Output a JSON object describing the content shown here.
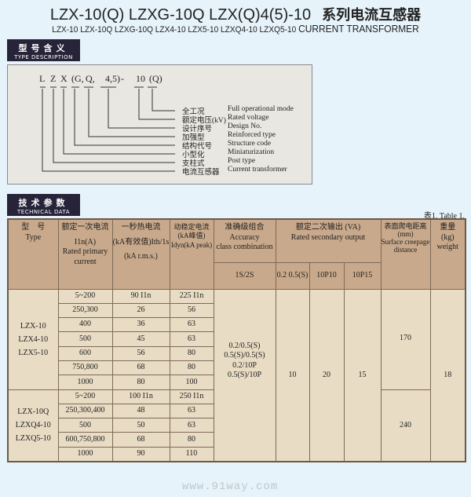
{
  "header": {
    "title": "LZX-10(Q) LZXG-10Q  LZX(Q)4(5)-10",
    "title_cn": "系列电流互感器",
    "subtitle_models": "LZX-10 LZX-10Q LZXG-10Q LZX4-10 LZX5-10 LZXQ4-10 LZXQ5-10",
    "subtitle_en": "CURRENT TRANSFORMER"
  },
  "type_section": {
    "cn": "型号含义",
    "en": "TYPE DESCRIPTION"
  },
  "diagram": {
    "code_parts": [
      "L",
      "Z",
      "X",
      "(G,",
      "Q,",
      "4,5)",
      "-",
      "10",
      "(Q)"
    ],
    "labels": [
      {
        "cn": "全工况",
        "en": "Full operational mode"
      },
      {
        "cn": "额定电压(kV)",
        "en": "Rated voltage"
      },
      {
        "cn": "设计序号",
        "en": "Design No."
      },
      {
        "cn": "加强型",
        "en": "Reinforced type"
      },
      {
        "cn": "结构代号",
        "en": "Structure code"
      },
      {
        "cn": "小型化",
        "en": "Miniaturization"
      },
      {
        "cn": "支柱式",
        "en": "Post type"
      },
      {
        "cn": "电流互感器",
        "en": "Current transformer"
      }
    ]
  },
  "tech_section": {
    "cn": "技术参数",
    "en": "TECHNICAL DATA"
  },
  "table": {
    "note": "表1, Table 1,",
    "headers": {
      "type": [
        "型　号",
        "Type"
      ],
      "primary": [
        "额定一次电流",
        "I1n(A)",
        "Rated primary current"
      ],
      "thermal": [
        "一秒热电流",
        "(kA有效值)Ith/1s",
        "(kA r.m.s.)"
      ],
      "dynamic": [
        "动稳定电流",
        "(kA峰值)",
        "Idyn(kA peak)"
      ],
      "accuracy": [
        "准确级组合",
        "Accuracy",
        "class combination"
      ],
      "output": [
        "额定二次输出 (VA)",
        "Rated secondary output"
      ],
      "creepage": [
        "表面爬电距离",
        "(mm)",
        "Surface creepage distance"
      ],
      "weight": [
        "重量",
        "(kg)",
        "weight"
      ],
      "sub": [
        "1S/2S",
        "0.2 0.5(S)",
        "10P10",
        "10P15"
      ]
    },
    "groups": [
      {
        "type": [
          "LZX-10",
          "LZX4-10",
          "LZX5-10"
        ],
        "creepage": "170",
        "rows": [
          [
            "5~200",
            "90 I1n",
            "225 I1n"
          ],
          [
            "250,300",
            "26",
            "56"
          ],
          [
            "400",
            "36",
            "63"
          ],
          [
            "500",
            "45",
            "63"
          ],
          [
            "600",
            "56",
            "80"
          ],
          [
            "750,800",
            "68",
            "80"
          ],
          [
            "1000",
            "80",
            "100"
          ]
        ]
      },
      {
        "type": [
          "LZX-10Q",
          "LZXQ4-10",
          "LZXQ5-10"
        ],
        "creepage": "240",
        "rows": [
          [
            "5~200",
            "100 I1n",
            "250 I1n"
          ],
          [
            "250,300,400",
            "48",
            "63"
          ],
          [
            "500",
            "50",
            "63"
          ],
          [
            "600,750,800",
            "68",
            "80"
          ],
          [
            "1000",
            "90",
            "110"
          ]
        ]
      }
    ],
    "accuracy_values": [
      "0.2/0.5(S)",
      "0.5(S)/0.5(S)",
      "0.2/10P",
      "0.5(S)/10P"
    ],
    "output_02": "10",
    "output_10p10": "20",
    "output_10p15": "15",
    "weight": "18"
  },
  "watermark": "www.91way.com"
}
